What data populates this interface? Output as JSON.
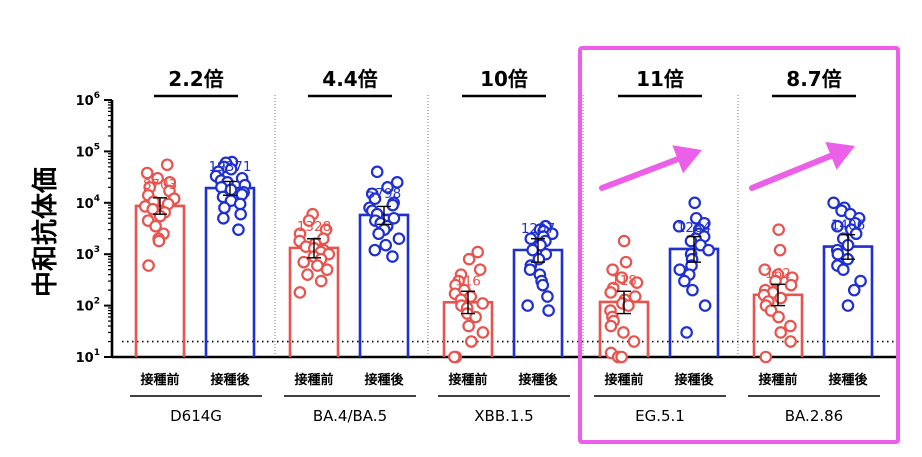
{
  "chart_data": {
    "type": "bar",
    "ylabel": "中和抗体価",
    "yscale": "log",
    "ylim": [
      10,
      1000000
    ],
    "yticks": [
      {
        "base": "10",
        "exp": "1",
        "value": 10
      },
      {
        "base": "10",
        "exp": "2",
        "value": 100
      },
      {
        "base": "10",
        "exp": "3",
        "value": 1000
      },
      {
        "base": "10",
        "exp": "4",
        "value": 10000
      },
      {
        "base": "10",
        "exp": "5",
        "value": 100000
      },
      {
        "base": "10",
        "exp": "6",
        "value": 1000000
      }
    ],
    "detection_limit": 20,
    "conditions": [
      "接種前",
      "接種後"
    ],
    "colors": {
      "before": "#e8534e",
      "after": "#1f2fd0",
      "highlight": "#ec5fe8",
      "axis": "#000000"
    },
    "groups": [
      {
        "variant": "D614G",
        "fold": "2.2倍",
        "before": 8703,
        "after": 19371,
        "highlighted": false,
        "before_ci": [
          6000,
          12500
        ],
        "after_ci": [
          14000,
          26000
        ],
        "before_points": [
          55000,
          38000,
          30000,
          25000,
          20000,
          17000,
          14000,
          12000,
          10500,
          9500,
          8500,
          7500,
          6500,
          5500,
          4500,
          3500,
          2500,
          2000,
          1800,
          600
        ],
        "after_points": [
          62000,
          60000,
          50000,
          45000,
          40000,
          33000,
          30000,
          27000,
          25000,
          22000,
          20000,
          18000,
          16000,
          14500,
          13000,
          11000,
          9500,
          8000,
          6000,
          5000,
          3000
        ]
      },
      {
        "variant": "BA.4/BA.5",
        "fold": "4.4倍",
        "before": 1328,
        "after": 5798,
        "highlighted": false,
        "before_ci": [
          850,
          2000
        ],
        "after_ci": [
          3800,
          8500
        ],
        "before_points": [
          6000,
          4500,
          3000,
          2500,
          2000,
          1800,
          1600,
          1400,
          1300,
          1200,
          1100,
          1000,
          900,
          800,
          700,
          600,
          500,
          400,
          300,
          180
        ],
        "after_points": [
          40000,
          25000,
          20000,
          15000,
          12000,
          10000,
          9000,
          8000,
          7000,
          6000,
          5000,
          4500,
          4000,
          3500,
          3000,
          2500,
          2000,
          1500,
          1200,
          900
        ]
      },
      {
        "variant": "XBB.1.5",
        "fold": "10倍",
        "before": 116,
        "after": 1207,
        "highlighted": false,
        "before_ci": [
          70,
          190
        ],
        "after_ci": [
          700,
          2000
        ],
        "before_points": [
          1100,
          800,
          500,
          400,
          300,
          250,
          200,
          170,
          150,
          130,
          110,
          100,
          90,
          70,
          60,
          40,
          30,
          20,
          10,
          10
        ],
        "after_points": [
          3500,
          3000,
          2800,
          2500,
          2200,
          2000,
          1800,
          1500,
          1200,
          1000,
          800,
          600,
          500,
          400,
          300,
          250,
          150,
          100,
          80
        ]
      },
      {
        "variant": "EG.5.1",
        "fold": "11倍",
        "before": 118,
        "after": 1264,
        "highlighted": true,
        "before_ci": [
          70,
          190
        ],
        "after_ci": [
          700,
          2200
        ],
        "before_points": [
          1800,
          700,
          500,
          350,
          280,
          220,
          180,
          150,
          130,
          110,
          100,
          80,
          60,
          50,
          40,
          30,
          20,
          12,
          10,
          10
        ],
        "after_points": [
          10000,
          5000,
          4000,
          3500,
          3000,
          2500,
          2200,
          2000,
          1800,
          1500,
          1200,
          1000,
          800,
          600,
          500,
          400,
          300,
          200,
          100,
          30
        ]
      },
      {
        "variant": "BA.2.86",
        "fold": "8.7倍",
        "before": 162,
        "after": 1406,
        "highlighted": true,
        "before_ci": [
          100,
          260
        ],
        "after_ci": [
          800,
          2400
        ],
        "before_points": [
          3000,
          1200,
          500,
          400,
          350,
          300,
          250,
          200,
          180,
          160,
          140,
          120,
          100,
          80,
          60,
          40,
          30,
          20,
          10
        ],
        "after_points": [
          10000,
          8000,
          7000,
          6000,
          5000,
          4000,
          3500,
          3000,
          2500,
          2000,
          1500,
          1200,
          1000,
          800,
          600,
          500,
          300,
          200,
          100
        ]
      }
    ]
  }
}
